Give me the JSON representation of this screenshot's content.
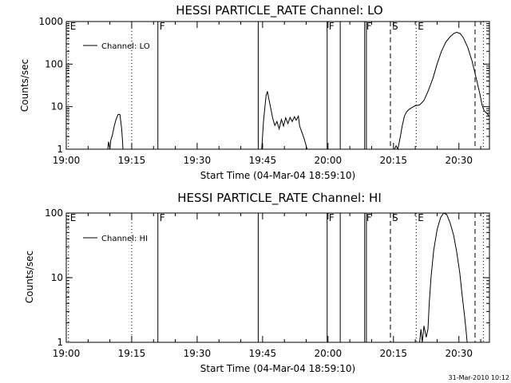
{
  "footer": {
    "timestamp": "31-Mar-2010 10:12"
  },
  "chart_data": [
    {
      "type": "line",
      "title": "HESSI PARTICLE_RATE Channel: LO",
      "xlabel": "Start Time (04-Mar-04 18:59:10)",
      "ylabel": "Counts/sec",
      "y_scale": "log",
      "ylim": [
        1,
        1000
      ],
      "xlim": [
        "19:00",
        "20:37"
      ],
      "grid": false,
      "legend": {
        "position": "top-left",
        "entries": [
          "Channel: LO"
        ]
      },
      "x_ticks": [
        "19:00",
        "19:15",
        "19:30",
        "19:45",
        "20:00",
        "20:15",
        "20:30"
      ],
      "y_ticks": [
        "1",
        "10",
        "100",
        "1000"
      ],
      "markers": [
        {
          "label": "E",
          "time": "19:00.5",
          "style": "dotted"
        },
        {
          "label": "",
          "time": "19:15",
          "style": "dotted"
        },
        {
          "label": "F",
          "time": "19:21",
          "style": "solid"
        },
        {
          "label": "",
          "time": "19:44",
          "style": "solid"
        },
        {
          "label": "F",
          "time": "19:59.8",
          "style": "solid"
        },
        {
          "label": "",
          "time": "20:02.8",
          "style": "solid"
        },
        {
          "label": "F",
          "time": "20:08.4",
          "style": "solid"
        },
        {
          "label": "",
          "time": "20:08.8",
          "style": "solid"
        },
        {
          "label": "S",
          "time": "20:14.3",
          "style": "dashed"
        },
        {
          "label": "E",
          "time": "20:20.2",
          "style": "dotted"
        },
        {
          "label": "",
          "time": "20:33.7",
          "style": "dashed"
        },
        {
          "label": "",
          "time": "20:35.6",
          "style": "dotted"
        }
      ],
      "series": [
        {
          "name": "Channel: LO",
          "segments": [
            [
              [
                9.5,
                1.0
              ],
              [
                9.7,
                1.5
              ],
              [
                10.0,
                1.0
              ],
              [
                10.2,
                1.6
              ],
              [
                10.6,
                2.2
              ],
              [
                11.0,
                3.5
              ],
              [
                11.4,
                5.0
              ],
              [
                11.9,
                6.6
              ],
              [
                12.3,
                6.5
              ],
              [
                12.7,
                3.0
              ],
              [
                12.9,
                1.5
              ],
              [
                13.0,
                1.0
              ]
            ],
            [
              [
                44.8,
                1.0
              ],
              [
                45.2,
                4.5
              ],
              [
                45.5,
                9.0
              ],
              [
                45.8,
                18.0
              ],
              [
                46.1,
                23.0
              ],
              [
                46.4,
                16.0
              ],
              [
                46.8,
                10.0
              ],
              [
                47.3,
                5.5
              ],
              [
                47.8,
                3.6
              ],
              [
                48.3,
                4.5
              ],
              [
                48.8,
                3.0
              ],
              [
                49.3,
                5.0
              ],
              [
                49.8,
                3.5
              ],
              [
                50.3,
                5.5
              ],
              [
                50.8,
                4.0
              ],
              [
                51.3,
                5.6
              ],
              [
                51.8,
                4.5
              ],
              [
                52.3,
                5.8
              ],
              [
                52.7,
                4.8
              ],
              [
                53.2,
                6.0
              ],
              [
                53.5,
                3.5
              ],
              [
                54.0,
                2.5
              ],
              [
                54.5,
                1.8
              ],
              [
                55.0,
                1.2
              ],
              [
                55.2,
                1.0
              ]
            ],
            [
              [
                75.2,
                1.0
              ],
              [
                75.6,
                1.2
              ],
              [
                76.0,
                1.0
              ],
              [
                76.6,
                2.0
              ],
              [
                77.0,
                3.5
              ],
              [
                77.5,
                6.0
              ],
              [
                78.0,
                7.5
              ],
              [
                78.5,
                8.5
              ],
              [
                79.2,
                9.5
              ],
              [
                80.0,
                10.5
              ],
              [
                81.0,
                11.0
              ],
              [
                82.0,
                14.0
              ],
              [
                83.0,
                24.0
              ],
              [
                84.0,
                45.0
              ],
              [
                85.0,
                100.0
              ],
              [
                86.0,
                200.0
              ],
              [
                87.0,
                330.0
              ],
              [
                88.0,
                440.0
              ],
              [
                88.8,
                520.0
              ],
              [
                89.5,
                560.0
              ],
              [
                90.3,
                520.0
              ],
              [
                91.0,
                420.0
              ],
              [
                92.0,
                250.0
              ],
              [
                93.0,
                120.0
              ],
              [
                94.0,
                45.0
              ],
              [
                94.8,
                20.0
              ],
              [
                95.3,
                11.0
              ],
              [
                95.8,
                8.0
              ],
              [
                96.4,
                7.0
              ],
              [
                96.8,
                6.2
              ]
            ]
          ]
        }
      ]
    },
    {
      "type": "line",
      "title": "HESSI PARTICLE_RATE Channel: HI",
      "xlabel": "Start Time (04-Mar-04 18:59:10)",
      "ylabel": "Counts/sec",
      "y_scale": "log",
      "ylim": [
        1,
        100
      ],
      "xlim": [
        "19:00",
        "20:37"
      ],
      "grid": false,
      "legend": {
        "position": "top-left",
        "entries": [
          "Channel: HI"
        ]
      },
      "x_ticks": [
        "19:00",
        "19:15",
        "19:30",
        "19:45",
        "20:00",
        "20:15",
        "20:30"
      ],
      "y_ticks": [
        "1",
        "10",
        "100"
      ],
      "markers": [
        {
          "label": "E",
          "time": "19:00.5",
          "style": "dotted"
        },
        {
          "label": "",
          "time": "19:15",
          "style": "dotted"
        },
        {
          "label": "F",
          "time": "19:21",
          "style": "solid"
        },
        {
          "label": "",
          "time": "19:44",
          "style": "solid"
        },
        {
          "label": "F",
          "time": "19:59.8",
          "style": "solid"
        },
        {
          "label": "",
          "time": "20:02.8",
          "style": "solid"
        },
        {
          "label": "F",
          "time": "20:08.4",
          "style": "solid"
        },
        {
          "label": "",
          "time": "20:08.8",
          "style": "solid"
        },
        {
          "label": "S",
          "time": "20:14.3",
          "style": "dashed"
        },
        {
          "label": "E",
          "time": "20:20.2",
          "style": "dotted"
        },
        {
          "label": "",
          "time": "20:33.7",
          "style": "dashed"
        },
        {
          "label": "",
          "time": "20:35.6",
          "style": "dotted"
        }
      ],
      "series": [
        {
          "name": "Channel: HI",
          "segments": [
            [
              [
                81.0,
                1.0
              ],
              [
                81.3,
                1.6
              ],
              [
                81.6,
                1.0
              ],
              [
                82.0,
                1.8
              ],
              [
                82.5,
                1.2
              ],
              [
                82.9,
                1.6
              ],
              [
                83.2,
                4.0
              ],
              [
                83.6,
                10.0
              ],
              [
                84.2,
                26.0
              ],
              [
                85.0,
                55.0
              ],
              [
                85.8,
                85.0
              ],
              [
                86.5,
                100.0
              ],
              [
                87.2,
                95.0
              ],
              [
                88.0,
                70.0
              ],
              [
                88.8,
                45.0
              ],
              [
                89.5,
                25.0
              ],
              [
                90.2,
                12.0
              ],
              [
                90.8,
                5.0
              ],
              [
                91.3,
                2.5
              ],
              [
                91.7,
                1.4
              ],
              [
                91.9,
                1.0
              ]
            ]
          ]
        }
      ]
    }
  ]
}
